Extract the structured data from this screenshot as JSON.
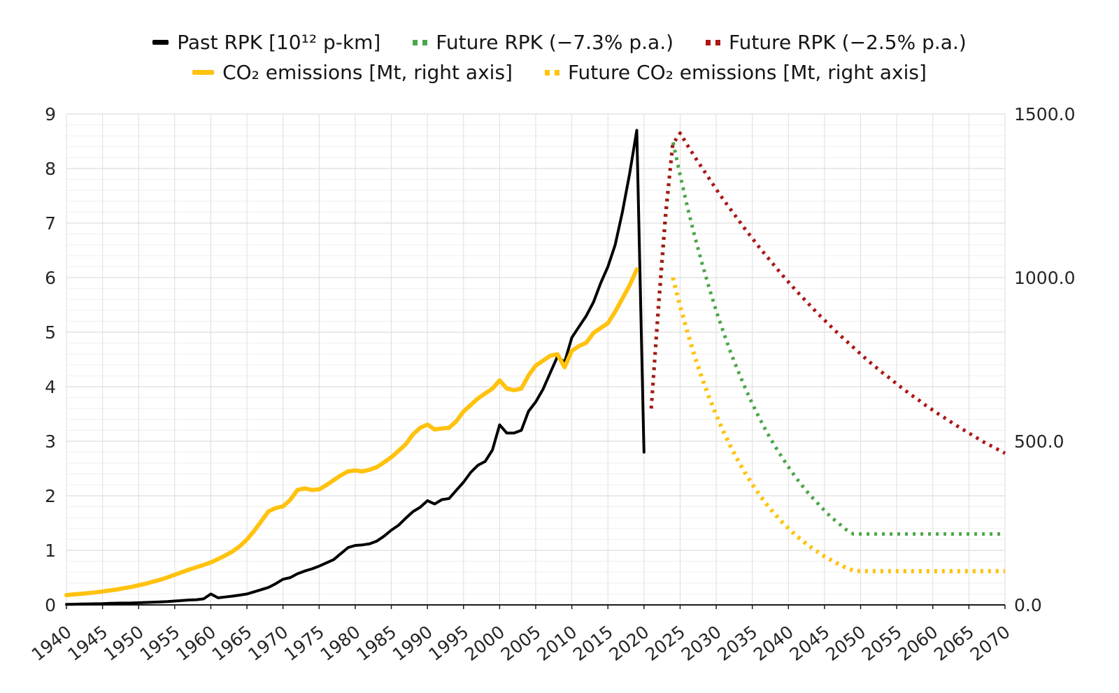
{
  "chart_data": {
    "type": "line",
    "title": "",
    "x_axis": {
      "min": 1940,
      "max": 2070,
      "tick_step": 5,
      "ticks": [
        1940,
        1945,
        1950,
        1955,
        1960,
        1965,
        1970,
        1975,
        1980,
        1985,
        1990,
        1995,
        2000,
        2005,
        2010,
        2015,
        2020,
        2025,
        2030,
        2035,
        2040,
        2045,
        2050,
        2055,
        2060,
        2065,
        2070
      ],
      "tick_labels": [
        "1940",
        "1945",
        "1950",
        "1955",
        "1960",
        "1965",
        "1970",
        "1975",
        "1980",
        "1985",
        "1990",
        "1995",
        "2000",
        "2005",
        "2010",
        "2015",
        "2020",
        "2025",
        "2030",
        "2035",
        "2040",
        "2045",
        "2050",
        "2055",
        "2060",
        "2065",
        "2070"
      ]
    },
    "left_axis": {
      "min": 0,
      "max": 9,
      "ticks": [
        0,
        1,
        2,
        3,
        4,
        5,
        6,
        7,
        8,
        9
      ],
      "tick_labels": [
        "0",
        "1",
        "2",
        "3",
        "4",
        "5",
        "6",
        "7",
        "8",
        "9"
      ],
      "minor_step": 0.2
    },
    "right_axis": {
      "min": 0,
      "max": 1500,
      "ticks": [
        0,
        500,
        1000,
        1500
      ],
      "tick_labels": [
        "0.0",
        "500.0",
        "1000.0",
        "1500.0"
      ]
    },
    "grid": {
      "horizontal": true,
      "vertical": true,
      "minor_horizontal": true
    },
    "legend_position": "top",
    "series": [
      {
        "name": "past_rpk",
        "label": "Past RPK [10¹² p-km]",
        "axis": "left",
        "color": "#000000",
        "style": "solid",
        "width": 4,
        "points": [
          [
            1940,
            0.01
          ],
          [
            1941,
            0.012
          ],
          [
            1942,
            0.015
          ],
          [
            1943,
            0.018
          ],
          [
            1944,
            0.02
          ],
          [
            1945,
            0.022
          ],
          [
            1946,
            0.03
          ],
          [
            1947,
            0.032
          ],
          [
            1948,
            0.033
          ],
          [
            1949,
            0.035
          ],
          [
            1950,
            0.04
          ],
          [
            1951,
            0.045
          ],
          [
            1952,
            0.05
          ],
          [
            1953,
            0.055
          ],
          [
            1954,
            0.06
          ],
          [
            1955,
            0.07
          ],
          [
            1956,
            0.08
          ],
          [
            1957,
            0.09
          ],
          [
            1958,
            0.095
          ],
          [
            1959,
            0.11
          ],
          [
            1960,
            0.2
          ],
          [
            1961,
            0.13
          ],
          [
            1962,
            0.145
          ],
          [
            1963,
            0.16
          ],
          [
            1964,
            0.18
          ],
          [
            1965,
            0.2
          ],
          [
            1966,
            0.24
          ],
          [
            1967,
            0.28
          ],
          [
            1968,
            0.32
          ],
          [
            1969,
            0.39
          ],
          [
            1970,
            0.47
          ],
          [
            1971,
            0.5
          ],
          [
            1972,
            0.57
          ],
          [
            1973,
            0.62
          ],
          [
            1974,
            0.66
          ],
          [
            1975,
            0.71
          ],
          [
            1976,
            0.77
          ],
          [
            1977,
            0.83
          ],
          [
            1978,
            0.94
          ],
          [
            1979,
            1.05
          ],
          [
            1980,
            1.09
          ],
          [
            1981,
            1.1
          ],
          [
            1982,
            1.12
          ],
          [
            1983,
            1.17
          ],
          [
            1984,
            1.26
          ],
          [
            1985,
            1.37
          ],
          [
            1986,
            1.46
          ],
          [
            1987,
            1.59
          ],
          [
            1988,
            1.71
          ],
          [
            1989,
            1.79
          ],
          [
            1990,
            1.91
          ],
          [
            1991,
            1.85
          ],
          [
            1992,
            1.93
          ],
          [
            1993,
            1.95
          ],
          [
            1994,
            2.1
          ],
          [
            1995,
            2.25
          ],
          [
            1996,
            2.43
          ],
          [
            1997,
            2.56
          ],
          [
            1998,
            2.63
          ],
          [
            1999,
            2.84
          ],
          [
            2000,
            3.3
          ],
          [
            2001,
            3.15
          ],
          [
            2002,
            3.15
          ],
          [
            2003,
            3.2
          ],
          [
            2004,
            3.55
          ],
          [
            2005,
            3.72
          ],
          [
            2006,
            3.95
          ],
          [
            2007,
            4.25
          ],
          [
            2008,
            4.55
          ],
          [
            2009,
            4.45
          ],
          [
            2010,
            4.9
          ],
          [
            2011,
            5.1
          ],
          [
            2012,
            5.3
          ],
          [
            2013,
            5.55
          ],
          [
            2014,
            5.9
          ],
          [
            2015,
            6.2
          ],
          [
            2016,
            6.6
          ],
          [
            2017,
            7.2
          ],
          [
            2018,
            7.9
          ],
          [
            2019,
            8.7
          ],
          [
            2020,
            2.8
          ]
        ]
      },
      {
        "name": "future_rpk_minus_7_3",
        "label": "Future RPK (−7.3% p.a.)",
        "axis": "left",
        "color": "#4da64a",
        "style": "dotted",
        "width": 5,
        "points": [
          [
            2021,
            3.6
          ],
          [
            2022,
            5.4
          ],
          [
            2023,
            7.1
          ],
          [
            2024,
            8.5
          ],
          [
            2025,
            7.88
          ],
          [
            2026,
            7.3
          ],
          [
            2027,
            6.77
          ],
          [
            2028,
            6.28
          ],
          [
            2029,
            5.82
          ],
          [
            2030,
            5.39
          ],
          [
            2031,
            5.0
          ],
          [
            2032,
            4.63
          ],
          [
            2033,
            4.3
          ],
          [
            2034,
            3.98
          ],
          [
            2035,
            3.69
          ],
          [
            2036,
            3.42
          ],
          [
            2037,
            3.17
          ],
          [
            2038,
            2.94
          ],
          [
            2039,
            2.73
          ],
          [
            2040,
            2.53
          ],
          [
            2041,
            2.34
          ],
          [
            2042,
            2.17
          ],
          [
            2043,
            2.01
          ],
          [
            2044,
            1.87
          ],
          [
            2045,
            1.73
          ],
          [
            2046,
            1.6
          ],
          [
            2047,
            1.49
          ],
          [
            2048,
            1.38
          ],
          [
            2049,
            1.3
          ],
          [
            2050,
            1.3
          ],
          [
            2055,
            1.3
          ],
          [
            2060,
            1.3
          ],
          [
            2065,
            1.3
          ],
          [
            2070,
            1.3
          ]
        ]
      },
      {
        "name": "future_rpk_minus_2_5",
        "label": "Future RPK (−2.5% p.a.)",
        "axis": "left",
        "color": "#ab1616",
        "style": "dotted",
        "width": 5,
        "points": [
          [
            2021,
            3.6
          ],
          [
            2022,
            5.5
          ],
          [
            2023,
            7.2
          ],
          [
            2024,
            8.45
          ],
          [
            2025,
            8.65
          ],
          [
            2026,
            8.43
          ],
          [
            2027,
            8.22
          ],
          [
            2028,
            8.02
          ],
          [
            2029,
            7.82
          ],
          [
            2030,
            7.62
          ],
          [
            2031,
            7.43
          ],
          [
            2032,
            7.25
          ],
          [
            2033,
            7.07
          ],
          [
            2034,
            6.89
          ],
          [
            2035,
            6.72
          ],
          [
            2036,
            6.55
          ],
          [
            2037,
            6.39
          ],
          [
            2038,
            6.23
          ],
          [
            2039,
            6.07
          ],
          [
            2040,
            5.92
          ],
          [
            2041,
            5.77
          ],
          [
            2042,
            5.63
          ],
          [
            2043,
            5.49
          ],
          [
            2044,
            5.35
          ],
          [
            2045,
            5.22
          ],
          [
            2046,
            5.09
          ],
          [
            2047,
            4.96
          ],
          [
            2048,
            4.84
          ],
          [
            2049,
            4.72
          ],
          [
            2050,
            4.6
          ],
          [
            2051,
            4.48
          ],
          [
            2052,
            4.37
          ],
          [
            2053,
            4.26
          ],
          [
            2054,
            4.16
          ],
          [
            2055,
            4.05
          ],
          [
            2056,
            3.95
          ],
          [
            2057,
            3.85
          ],
          [
            2058,
            3.76
          ],
          [
            2059,
            3.66
          ],
          [
            2060,
            3.57
          ],
          [
            2061,
            3.48
          ],
          [
            2062,
            3.4
          ],
          [
            2063,
            3.31
          ],
          [
            2064,
            3.23
          ],
          [
            2065,
            3.15
          ],
          [
            2066,
            3.07
          ],
          [
            2067,
            2.99
          ],
          [
            2068,
            2.92
          ],
          [
            2069,
            2.85
          ],
          [
            2070,
            2.78
          ]
        ]
      },
      {
        "name": "co2_emissions",
        "label": "CO₂ emissions [Mt, right axis]",
        "axis": "right",
        "color": "#ffc20e",
        "style": "solid",
        "width": 6,
        "points": [
          [
            1940,
            30
          ],
          [
            1941,
            32
          ],
          [
            1942,
            34
          ],
          [
            1943,
            36
          ],
          [
            1944,
            38
          ],
          [
            1945,
            41
          ],
          [
            1946,
            44
          ],
          [
            1947,
            47
          ],
          [
            1948,
            51
          ],
          [
            1949,
            55
          ],
          [
            1950,
            60
          ],
          [
            1951,
            65
          ],
          [
            1952,
            71
          ],
          [
            1953,
            77
          ],
          [
            1954,
            84
          ],
          [
            1955,
            92
          ],
          [
            1956,
            100
          ],
          [
            1957,
            108
          ],
          [
            1958,
            115
          ],
          [
            1959,
            122
          ],
          [
            1960,
            130
          ],
          [
            1961,
            140
          ],
          [
            1962,
            151
          ],
          [
            1963,
            163
          ],
          [
            1964,
            179
          ],
          [
            1965,
            200
          ],
          [
            1966,
            226
          ],
          [
            1967,
            256
          ],
          [
            1968,
            286
          ],
          [
            1969,
            296
          ],
          [
            1970,
            301
          ],
          [
            1971,
            321
          ],
          [
            1972,
            351
          ],
          [
            1973,
            356
          ],
          [
            1974,
            351
          ],
          [
            1975,
            353
          ],
          [
            1976,
            366
          ],
          [
            1977,
            381
          ],
          [
            1978,
            396
          ],
          [
            1979,
            408
          ],
          [
            1980,
            411
          ],
          [
            1981,
            408
          ],
          [
            1982,
            413
          ],
          [
            1983,
            421
          ],
          [
            1984,
            436
          ],
          [
            1985,
            451
          ],
          [
            1986,
            471
          ],
          [
            1987,
            491
          ],
          [
            1988,
            521
          ],
          [
            1989,
            541
          ],
          [
            1990,
            551
          ],
          [
            1991,
            536
          ],
          [
            1992,
            539
          ],
          [
            1993,
            541
          ],
          [
            1994,
            561
          ],
          [
            1995,
            591
          ],
          [
            1996,
            611
          ],
          [
            1997,
            631
          ],
          [
            1998,
            646
          ],
          [
            1999,
            661
          ],
          [
            2000,
            686
          ],
          [
            2001,
            661
          ],
          [
            2002,
            656
          ],
          [
            2003,
            661
          ],
          [
            2004,
            701
          ],
          [
            2005,
            731
          ],
          [
            2006,
            746
          ],
          [
            2007,
            761
          ],
          [
            2008,
            766
          ],
          [
            2009,
            726
          ],
          [
            2010,
            776
          ],
          [
            2011,
            791
          ],
          [
            2012,
            801
          ],
          [
            2013,
            831
          ],
          [
            2014,
            846
          ],
          [
            2015,
            861
          ],
          [
            2016,
            896
          ],
          [
            2017,
            936
          ],
          [
            2018,
            976
          ],
          [
            2019,
            1025
          ]
        ]
      },
      {
        "name": "future_co2_emissions",
        "label": "Future CO₂ emissions [Mt, right axis]",
        "axis": "right",
        "color": "#ffc20e",
        "style": "dotted",
        "width": 6,
        "points": [
          [
            2024,
            1000
          ],
          [
            2025,
            913
          ],
          [
            2026,
            834
          ],
          [
            2027,
            761
          ],
          [
            2028,
            695
          ],
          [
            2029,
            635
          ],
          [
            2030,
            580
          ],
          [
            2031,
            530
          ],
          [
            2032,
            484
          ],
          [
            2033,
            442
          ],
          [
            2034,
            403
          ],
          [
            2035,
            368
          ],
          [
            2036,
            336
          ],
          [
            2037,
            307
          ],
          [
            2038,
            280
          ],
          [
            2039,
            256
          ],
          [
            2040,
            234
          ],
          [
            2041,
            213
          ],
          [
            2042,
            195
          ],
          [
            2043,
            178
          ],
          [
            2044,
            163
          ],
          [
            2045,
            148
          ],
          [
            2046,
            136
          ],
          [
            2047,
            124
          ],
          [
            2048,
            113
          ],
          [
            2049,
            105
          ],
          [
            2050,
            103
          ],
          [
            2055,
            103
          ],
          [
            2060,
            103
          ],
          [
            2065,
            103
          ],
          [
            2070,
            103
          ]
        ]
      }
    ],
    "colors": {
      "grid_major": "#d6d6d6",
      "grid_minor": "#efefef",
      "grid_vertical": "#dedede",
      "axis_line": "#1a1a1a",
      "tick_text": "#262626"
    }
  }
}
